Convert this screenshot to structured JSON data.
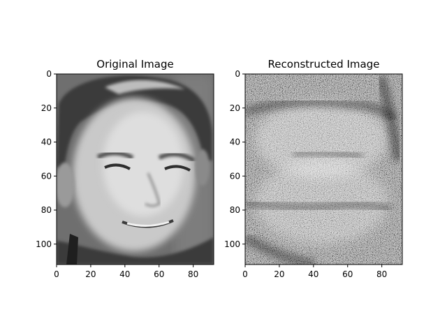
{
  "chart_data": [
    {
      "type": "heatmap",
      "title": "Original Image",
      "xlim": [
        0,
        92
      ],
      "ylim": [
        112,
        0
      ],
      "xticks": [
        0,
        20,
        40,
        60,
        80
      ],
      "yticks": [
        0,
        20,
        40,
        60,
        80,
        100
      ],
      "colormap": "gray",
      "grid": false,
      "content": "grayscale face photo"
    },
    {
      "type": "heatmap",
      "title": "Reconstructed Image",
      "xlim": [
        0,
        92
      ],
      "ylim": [
        112,
        0
      ],
      "xticks": [
        0,
        20,
        40,
        60,
        80
      ],
      "yticks": [
        0,
        20,
        40,
        60,
        80,
        100
      ],
      "colormap": "gray",
      "grid": false,
      "content": "noisy grayscale reconstruction"
    }
  ]
}
